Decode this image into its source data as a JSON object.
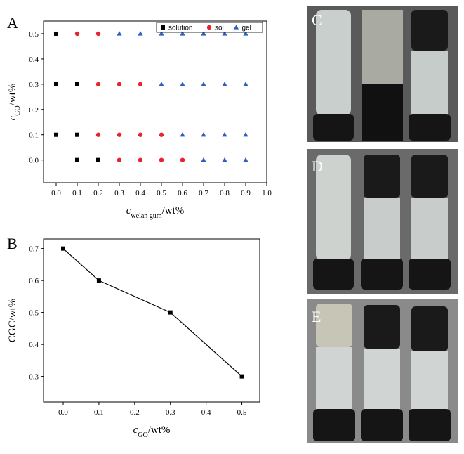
{
  "chart_data": [
    {
      "type": "scatter",
      "panel": "A",
      "x_label": {
        "main": "c",
        "sub": "welan gum",
        "rest": "/wt%"
      },
      "y_label": {
        "main": "c",
        "sub": "GO",
        "rest": "/wt%"
      },
      "xlim": [
        -0.06,
        1.0
      ],
      "ylim": [
        -0.09,
        0.55
      ],
      "xticks": [
        {
          "value": 0,
          "label": "0.0"
        },
        0.1,
        0.2,
        0.3,
        0.4,
        0.5,
        0.6,
        0.7,
        0.8,
        0.9,
        {
          "value": 1,
          "label": "1.0"
        }
      ],
      "yticks": [
        {
          "value": 0,
          "label": "0.0"
        },
        0.1,
        0.2,
        0.3,
        0.4,
        0.5
      ],
      "legend": "upper right",
      "series": [
        {
          "name": "solution",
          "color": "#000000",
          "marker": "square",
          "x": [
            0,
            0,
            0.1,
            0,
            0.1,
            0.1,
            0.2
          ],
          "y": [
            0.5,
            0.3,
            0.3,
            0.1,
            0.1,
            0,
            0
          ]
        },
        {
          "name": "sol",
          "color": "#e8242a",
          "marker": "circle",
          "x": [
            0.1,
            0.2,
            0.2,
            0.3,
            0.4,
            0.2,
            0.3,
            0.4,
            0.5,
            0.3,
            0.4,
            0.5,
            0.6
          ],
          "y": [
            0.5,
            0.5,
            0.3,
            0.3,
            0.3,
            0.1,
            0.1,
            0.1,
            0.1,
            0,
            0,
            0,
            0
          ]
        },
        {
          "name": "gel",
          "color": "#2f5fbf",
          "marker": "triangle",
          "x": [
            0.3,
            0.4,
            0.5,
            0.6,
            0.7,
            0.8,
            0.9,
            0.5,
            0.6,
            0.7,
            0.8,
            0.9,
            0.6,
            0.7,
            0.8,
            0.9,
            0.7,
            0.8,
            0.9
          ],
          "y": [
            0.5,
            0.5,
            0.5,
            0.5,
            0.5,
            0.5,
            0.5,
            0.3,
            0.3,
            0.3,
            0.3,
            0.3,
            0.1,
            0.1,
            0.1,
            0.1,
            0,
            0,
            0
          ]
        }
      ]
    },
    {
      "type": "line",
      "panel": "B",
      "x_label": {
        "main": "c",
        "sub": "GO",
        "rest": "/wt%"
      },
      "y_label": {
        "main": "CGC/wt%"
      },
      "xlim": [
        -0.055,
        0.55
      ],
      "ylim": [
        0.22,
        0.73
      ],
      "xticks": [
        {
          "value": 0,
          "label": "0.0"
        },
        0.1,
        0.2,
        0.3,
        0.4,
        0.5
      ],
      "yticks": [
        0.3,
        0.4,
        0.5,
        0.6,
        0.7
      ],
      "series": [
        {
          "color": "#000000",
          "marker": "square",
          "x": [
            0,
            0.1,
            0.3,
            0.5
          ],
          "y": [
            0.7,
            0.6,
            0.5,
            0.3
          ]
        }
      ]
    }
  ],
  "photos": {
    "labels": [
      "C",
      "D",
      "E"
    ]
  }
}
